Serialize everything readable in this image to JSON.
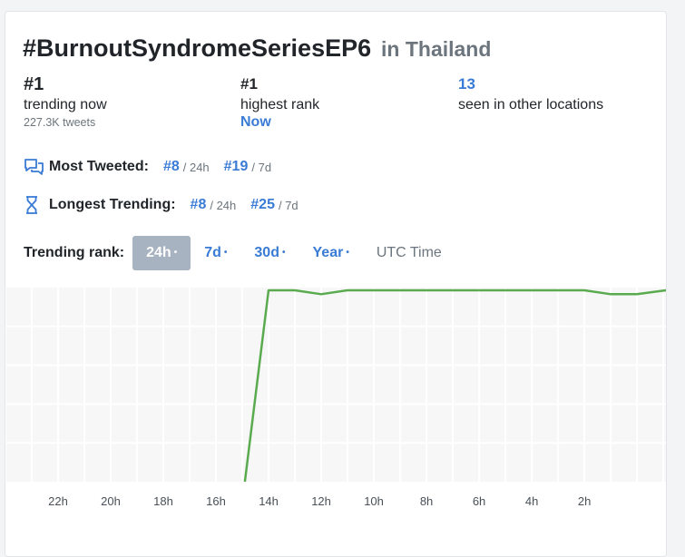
{
  "header": {
    "hashtag": "#BurnoutSyndromeSeriesEP6",
    "location": "in Thailand"
  },
  "stats": {
    "trending_now": {
      "value": "#1",
      "label": "trending now",
      "tweets": "227.3K tweets"
    },
    "highest_rank": {
      "value": "#1",
      "label": "highest rank",
      "when": "Now"
    },
    "other_locations": {
      "value": "13",
      "label": "seen in other locations"
    }
  },
  "most_tweeted": {
    "label": "Most Tweeted:",
    "icon": "chat-bubbles-icon",
    "rank_24h": "#8",
    "period_24h": "/ 24h",
    "rank_7d": "#19",
    "period_7d": "/ 7d"
  },
  "longest_trending": {
    "label": "Longest Trending:",
    "icon": "hourglass-icon",
    "rank_24h": "#8",
    "period_24h": "/ 24h",
    "rank_7d": "#25",
    "period_7d": "/ 7d"
  },
  "trending_rank": {
    "label": "Trending rank:",
    "tabs": [
      {
        "label": "24h",
        "dot": "•",
        "active": true
      },
      {
        "label": "7d",
        "dot": "•"
      },
      {
        "label": "30d",
        "dot": "•"
      },
      {
        "label": "Year",
        "dot": "•"
      }
    ],
    "utc": "UTC Time"
  },
  "colors": {
    "accent": "#3a7bd5",
    "line": "#5aab4f",
    "active_tab": "#a7b3c0"
  },
  "chart_data": {
    "type": "line",
    "title": "",
    "xlabel": "",
    "ylabel": "",
    "grid": true,
    "x_direction": "decreasing-left-to-right",
    "xlim": [
      24,
      -1.1
    ],
    "ylim": [
      50,
      1
    ],
    "tick_labels": [
      "22h",
      "20h",
      "18h",
      "16h",
      "14h",
      "12h",
      "10h",
      "8h",
      "6h",
      "4h",
      "2h"
    ],
    "tick_values": [
      22,
      20,
      18,
      16,
      14,
      12,
      10,
      8,
      6,
      4,
      2
    ],
    "series": [
      {
        "x": [
          14.9,
          14,
          13,
          12,
          11,
          10,
          9,
          8,
          7,
          6,
          5,
          4,
          3,
          2,
          1,
          0,
          -1.1
        ],
        "y": [
          50,
          1,
          1,
          2,
          1,
          1,
          1,
          1,
          1,
          1,
          1,
          1,
          1,
          1,
          2,
          2,
          1
        ]
      }
    ]
  }
}
